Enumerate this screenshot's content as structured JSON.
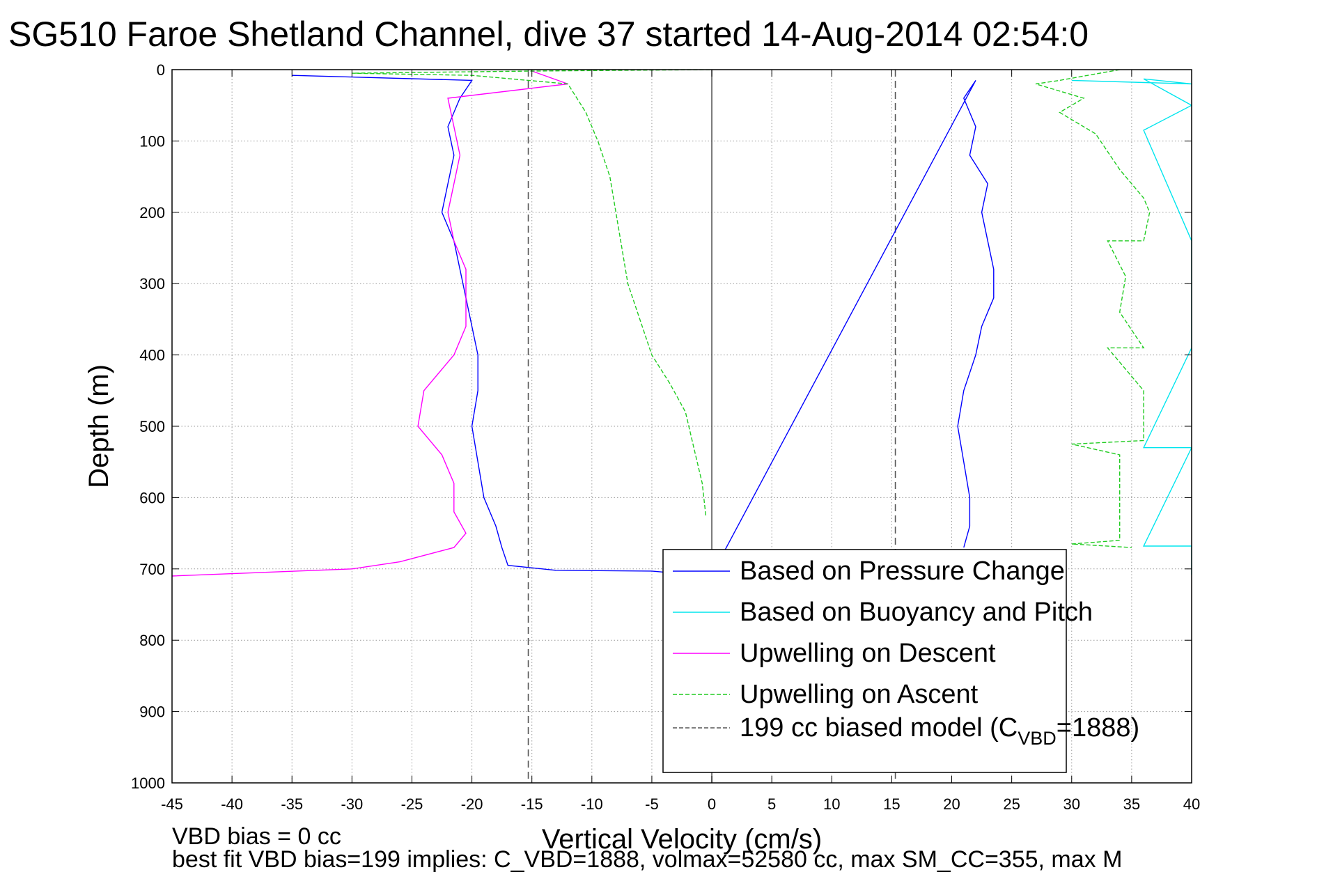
{
  "title": "SG510 Faroe Shetland Channel, dive 37 started 14-Aug-2014 02:54:0",
  "footer": {
    "line1": "VBD bias = 0 cc",
    "line2": "best fit VBD bias=199 implies: C_VBD=1888, volmax=52580 cc, max SM_CC=355, max M"
  },
  "chart_data": {
    "type": "line",
    "title": "SG510 Faroe Shetland Channel, dive 37 started 14-Aug-2014 02:54:0",
    "xlabel": "Vertical Velocity (cm/s)",
    "ylabel": "Depth (m)",
    "xlim": [
      -45,
      40
    ],
    "ylim": [
      0,
      1000
    ],
    "y_reversed": true,
    "grid": true,
    "legend_position": "bottom-right",
    "x_ticks": [
      "-45",
      "-40",
      "-35",
      "-30",
      "-25",
      "-20",
      "-15",
      "-10",
      "-5",
      "0",
      "5",
      "10",
      "15",
      "20",
      "25",
      "30",
      "35",
      "40"
    ],
    "y_ticks": [
      "0",
      "100",
      "200",
      "300",
      "400",
      "500",
      "600",
      "700",
      "800",
      "900",
      "1000"
    ],
    "reference_lines": [
      {
        "type": "vertical",
        "x": 0,
        "style": "solid",
        "color": "#555555"
      },
      {
        "type": "vertical",
        "x": -15.3,
        "style": "dashed",
        "color": "#555555"
      },
      {
        "type": "vertical",
        "x": 15.3,
        "style": "dashed",
        "color": "#555555"
      }
    ],
    "series": [
      {
        "name": "Based on Pressure Change",
        "color": "#0000ff",
        "style": "solid",
        "points": [
          [
            -35,
            8
          ],
          [
            -20,
            15
          ],
          [
            -21,
            40
          ],
          [
            -22,
            80
          ],
          [
            -21.5,
            120
          ],
          [
            -22,
            160
          ],
          [
            -22.5,
            200
          ],
          [
            -21.5,
            240
          ],
          [
            -21,
            280
          ],
          [
            -20.5,
            320
          ],
          [
            -20,
            360
          ],
          [
            -19.5,
            400
          ],
          [
            -19.5,
            450
          ],
          [
            -20,
            500
          ],
          [
            -19.5,
            550
          ],
          [
            -19,
            600
          ],
          [
            -18,
            640
          ],
          [
            -17.5,
            670
          ],
          [
            -17,
            695
          ],
          [
            -13,
            702
          ],
          [
            -5,
            703
          ],
          [
            -3,
            706
          ],
          [
            0,
            708
          ],
          [
            22,
            15
          ],
          [
            21,
            40
          ],
          [
            22,
            80
          ],
          [
            21.5,
            120
          ],
          [
            23,
            160
          ],
          [
            22.5,
            200
          ],
          [
            23,
            240
          ],
          [
            23.5,
            280
          ],
          [
            23.5,
            320
          ],
          [
            22.5,
            360
          ],
          [
            22,
            400
          ],
          [
            21,
            450
          ],
          [
            20.5,
            500
          ],
          [
            21,
            550
          ],
          [
            21.5,
            600
          ],
          [
            21.5,
            640
          ],
          [
            21,
            670
          ]
        ]
      },
      {
        "name": "Based on Buoyancy and Pitch",
        "color": "#00e5ee",
        "style": "solid",
        "points": [
          [
            30,
            15
          ],
          [
            40,
            20
          ],
          [
            36,
            13
          ],
          [
            40,
            50
          ],
          [
            36,
            85
          ],
          [
            40,
            240
          ],
          [
            40,
            390
          ],
          [
            36,
            530
          ],
          [
            40,
            530
          ],
          [
            36,
            668
          ],
          [
            40,
            668
          ],
          [
            40,
            708
          ]
        ]
      },
      {
        "name": "Upwelling on Descent",
        "color": "#ff00ff",
        "style": "solid",
        "points": [
          [
            -15,
            2
          ],
          [
            -12,
            20
          ],
          [
            -22,
            40
          ],
          [
            -21.5,
            80
          ],
          [
            -21,
            120
          ],
          [
            -21.5,
            160
          ],
          [
            -22,
            200
          ],
          [
            -21.5,
            240
          ],
          [
            -20.5,
            280
          ],
          [
            -20.5,
            320
          ],
          [
            -20.5,
            360
          ],
          [
            -21.5,
            400
          ],
          [
            -24,
            450
          ],
          [
            -24.5,
            500
          ],
          [
            -22.5,
            540
          ],
          [
            -21.5,
            580
          ],
          [
            -21.5,
            620
          ],
          [
            -20.5,
            650
          ],
          [
            -21.5,
            670
          ],
          [
            -26,
            690
          ],
          [
            -30,
            700
          ],
          [
            -45,
            710
          ]
        ]
      },
      {
        "name": "Upwelling on Ascent",
        "color": "#22cc22",
        "style": "dashed",
        "points": [
          [
            -0.5,
            625
          ],
          [
            -0.8,
            580
          ],
          [
            -1.5,
            530
          ],
          [
            -2.2,
            480
          ],
          [
            -3.5,
            440
          ],
          [
            -5,
            400
          ],
          [
            -6,
            350
          ],
          [
            -7,
            300
          ],
          [
            -7.5,
            250
          ],
          [
            -8,
            200
          ],
          [
            -8.5,
            150
          ],
          [
            -9.5,
            100
          ],
          [
            -10.5,
            60
          ],
          [
            -12,
            20
          ],
          [
            -20,
            8
          ],
          [
            -30,
            5
          ],
          [
            -15,
            2
          ],
          [
            0,
            0
          ],
          [
            34,
            0
          ],
          [
            29,
            15
          ],
          [
            27,
            20
          ],
          [
            31,
            40
          ],
          [
            29,
            60
          ],
          [
            32,
            90
          ],
          [
            34,
            140
          ],
          [
            36,
            180
          ],
          [
            36.5,
            200
          ],
          [
            36,
            240
          ],
          [
            33,
            240
          ],
          [
            34.5,
            290
          ],
          [
            34,
            340
          ],
          [
            36,
            390
          ],
          [
            33,
            390
          ],
          [
            36,
            450
          ],
          [
            36,
            520
          ],
          [
            30,
            525
          ],
          [
            34,
            540
          ],
          [
            34,
            600
          ],
          [
            34,
            660
          ],
          [
            30,
            665
          ],
          [
            35,
            670
          ]
        ]
      },
      {
        "name": "199 cc biased model (C_VBD=1888)",
        "color": "#555555",
        "style": "dashed",
        "points": [
          [
            -15.3,
            0
          ],
          [
            -15.3,
            1000
          ],
          [
            15.3,
            0
          ],
          [
            15.3,
            1000
          ]
        ]
      }
    ],
    "legend": [
      {
        "label": "Based on Pressure Change",
        "color": "#0000ff",
        "style": "solid"
      },
      {
        "label": "Based on Buoyancy and Pitch",
        "color": "#00e5ee",
        "style": "solid"
      },
      {
        "label": "Upwelling on Descent",
        "color": "#ff00ff",
        "style": "solid"
      },
      {
        "label": "Upwelling on Ascent",
        "color": "#22cc22",
        "style": "dashed"
      },
      {
        "label_main": "199 cc biased model (C",
        "label_sub": "VBD",
        "label_tail": "=1888)",
        "color": "#555555",
        "style": "dashed"
      }
    ]
  }
}
